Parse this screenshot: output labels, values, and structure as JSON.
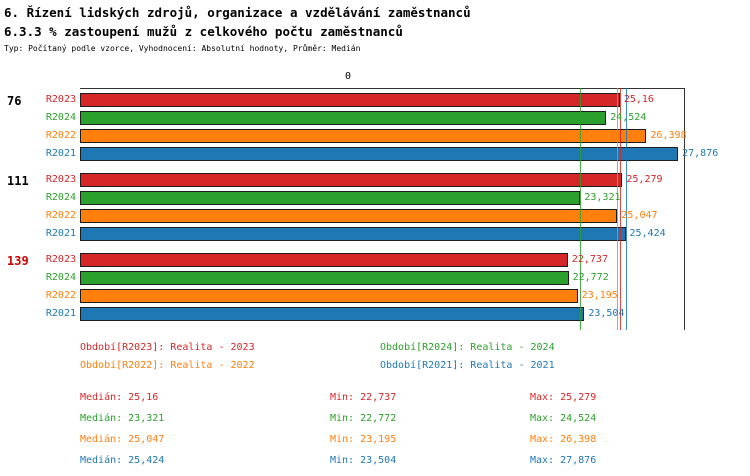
{
  "header": {
    "title1": "6. Řízení lidských zdrojů, organizace a vzdělávání zaměstnanců",
    "title2": "6.3.3 % zastoupení mužů z celkového počtu zaměstnanců",
    "meta": "Typ: Počítaný podle vzorce, Vyhodnocení: Absolutní hodnoty, Průměr: Medián"
  },
  "chart_data": {
    "type": "bar",
    "orientation": "horizontal",
    "axis": {
      "xmin": 0,
      "xmax": 28.15,
      "zero_label": "0",
      "grid": false
    },
    "series": [
      {
        "id": "R2023",
        "label": "R2023",
        "color": "#d62728"
      },
      {
        "id": "R2024",
        "label": "R2024",
        "color": "#2ca02c"
      },
      {
        "id": "R2022",
        "label": "R2022",
        "color": "#ff7f0e"
      },
      {
        "id": "R2021",
        "label": "R2021",
        "color": "#1f77b4"
      }
    ],
    "groups": [
      {
        "label": "76",
        "label_color": "#000000",
        "values": [
          25.16,
          24.524,
          26.398,
          27.876
        ],
        "value_labels": [
          "25,16",
          "24,524",
          "26,398",
          "27,876"
        ]
      },
      {
        "label": "111",
        "label_color": "#000000",
        "values": [
          25.279,
          23.321,
          25.047,
          25.424
        ],
        "value_labels": [
          "25,279",
          "23,321",
          "25,047",
          "25,424"
        ]
      },
      {
        "label": "139",
        "label_color": "#cc0000",
        "values": [
          22.737,
          22.772,
          23.195,
          23.504
        ],
        "value_labels": [
          "22,737",
          "22,772",
          "23,195",
          "23,504"
        ]
      }
    ],
    "median_lines": [
      {
        "series": "R2023",
        "value": 25.16,
        "color": "#d62728"
      },
      {
        "series": "R2024",
        "value": 23.321,
        "color": "#2ca02c"
      },
      {
        "series": "R2022",
        "value": 25.047,
        "color": "#ff7f0e"
      },
      {
        "series": "R2021",
        "value": 25.424,
        "color": "#1f77b4"
      }
    ]
  },
  "legend": {
    "items": [
      {
        "label": "Období[R2023]: Realita - 2023",
        "color": "#d62728"
      },
      {
        "label": "Období[R2024]: Realita - 2024",
        "color": "#2ca02c"
      },
      {
        "label": "Období[R2022]: Realita - 2022",
        "color": "#ff7f0e"
      },
      {
        "label": "Období[R2021]: Realita - 2021",
        "color": "#1f77b4"
      }
    ]
  },
  "stats": {
    "rows": [
      {
        "color": "#d62728",
        "median": "Medián: 25,16",
        "min": "Min: 22,737",
        "max": "Max: 25,279"
      },
      {
        "color": "#2ca02c",
        "median": "Medián: 23,321",
        "min": "Min: 22,772",
        "max": "Max: 24,524"
      },
      {
        "color": "#ff7f0e",
        "median": "Medián: 25,047",
        "min": "Min: 23,195",
        "max": "Max: 26,398"
      },
      {
        "color": "#1f77b4",
        "median": "Medián: 25,424",
        "min": "Min: 23,504",
        "max": "Max: 27,876"
      }
    ]
  }
}
